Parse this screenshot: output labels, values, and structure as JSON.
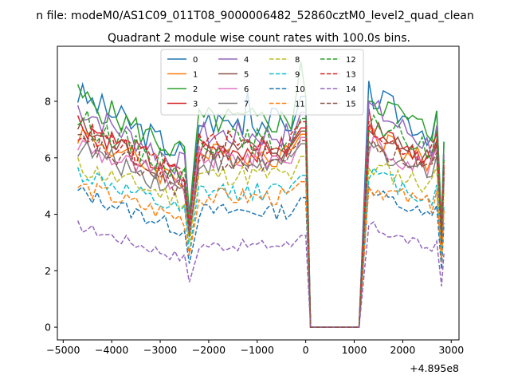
{
  "chart_data": {
    "type": "line",
    "suptitle": "n file: modeM0/AS1C09_011T08_9000006482_52860cztM0_level2_quad_clean",
    "title": "Quadrant 2 module wise count rates with 100.0s bins.",
    "xlabel": "",
    "ylabel": "",
    "x_offset_label": "+4.895e8",
    "xlim": [
      -5120,
      3160
    ],
    "ylim": [
      -0.45,
      9.95
    ],
    "xticks": [
      -5000,
      -4000,
      -3000,
      -2000,
      -1000,
      0,
      1000,
      2000,
      3000
    ],
    "xtick_labels": [
      "−5000",
      "−4000",
      "−3000",
      "−2000",
      "−1000",
      "0",
      "1000",
      "2000",
      "3000"
    ],
    "yticks": [
      0,
      2,
      4,
      6,
      8
    ],
    "ytick_labels": [
      "0",
      "2",
      "4",
      "6",
      "8"
    ],
    "grid": false,
    "legend_position": "upper-center",
    "legend_columns": 4,
    "segments": [
      {
        "x0": -4700,
        "dx": 100,
        "n": 24
      },
      {
        "x0": -2200,
        "dx": 100,
        "n": 20
      },
      {
        "x0": -100,
        "dx": 100,
        "n": 13
      },
      {
        "x0": 1300,
        "dx": 100,
        "n": 16
      }
    ],
    "x_gaps": [
      [
        -2300,
        -2200
      ],
      [
        -200,
        -100
      ],
      [
        1100,
        1300
      ],
      [
        2800,
        2810
      ]
    ],
    "gap_minimums": [
      0.6,
      2.6,
      0.0,
      3.3
    ],
    "series": [
      {
        "name": "0",
        "color": "#1f77b4",
        "dash": "solid",
        "level": 7.3,
        "start": 8.25,
        "values_peak": {
          "x": -1200,
          "y": 8.35
        }
      },
      {
        "name": "1",
        "color": "#ff7f0e",
        "dash": "solid",
        "level": 6.1,
        "start": 6.9
      },
      {
        "name": "2",
        "color": "#2ca02c",
        "dash": "solid",
        "level": 7.3,
        "start": 8.2,
        "values_peak": {
          "x": -100,
          "y": 9.4
        }
      },
      {
        "name": "3",
        "color": "#d62728",
        "dash": "solid",
        "level": 6.3,
        "start": 7.3
      },
      {
        "name": "4",
        "color": "#9467bd",
        "dash": "solid",
        "level": 6.8,
        "start": 7.8
      },
      {
        "name": "5",
        "color": "#8c564b",
        "dash": "solid",
        "level": 6.2,
        "start": 7.1
      },
      {
        "name": "6",
        "color": "#e377c2",
        "dash": "solid",
        "level": 6.0,
        "start": 6.5
      },
      {
        "name": "7",
        "color": "#7f7f7f",
        "dash": "solid",
        "level": 5.8,
        "start": 6.4
      },
      {
        "name": "8",
        "color": "#bcbd22",
        "dash": "dashed",
        "level": 5.4,
        "start": 5.7
      },
      {
        "name": "9",
        "color": "#17becf",
        "dash": "dashed",
        "level": 4.8,
        "start": 5.5
      },
      {
        "name": "10",
        "color": "#1f77b4",
        "dash": "dashed",
        "level": 4.1,
        "start": 4.8
      },
      {
        "name": "11",
        "color": "#ff7f0e",
        "dash": "dashed",
        "level": 4.6,
        "start": 5.0
      },
      {
        "name": "12",
        "color": "#2ca02c",
        "dash": "dashed",
        "level": 6.6,
        "start": 7.4
      },
      {
        "name": "13",
        "color": "#d62728",
        "dash": "dashed",
        "level": 6.5,
        "start": 7.0
      },
      {
        "name": "14",
        "color": "#9467bd",
        "dash": "dashed",
        "level": 2.9,
        "start": 3.6
      },
      {
        "name": "15",
        "color": "#8c564b",
        "dash": "dashed",
        "level": 5.9,
        "start": 6.6
      }
    ]
  }
}
